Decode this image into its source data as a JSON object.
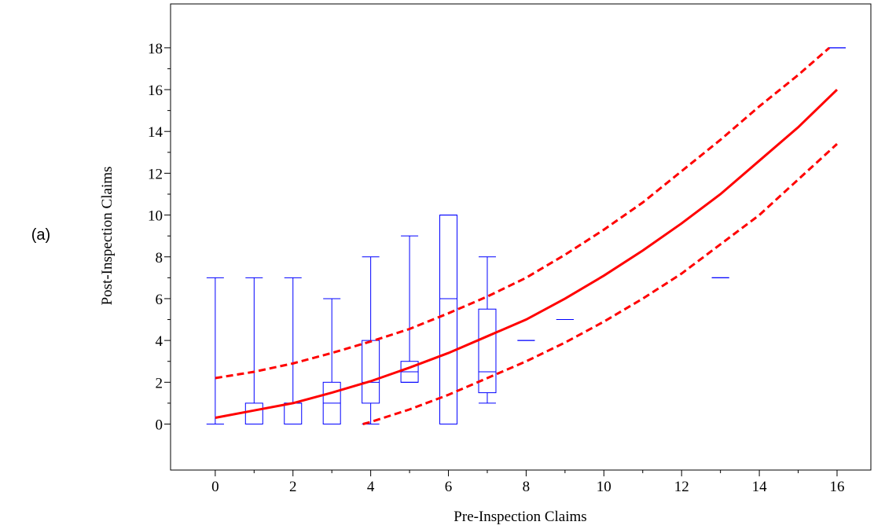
{
  "chart_data": {
    "type": "box_with_curves",
    "panel_label": "(a)",
    "x_label": "Pre-Inspection Claims",
    "y_label": "Post-Inspection Claims",
    "xlim": [
      -1.15,
      16.87
    ],
    "ylim": [
      -2.2,
      20.1
    ],
    "xticks": [
      0,
      2,
      4,
      6,
      8,
      10,
      12,
      14,
      16
    ],
    "xminorticks": [
      1,
      3,
      5,
      7,
      9,
      11,
      13,
      15
    ],
    "yticks": [
      0,
      2,
      4,
      6,
      8,
      10,
      12,
      14,
      16,
      18
    ],
    "yminorticks": [
      1,
      3,
      5,
      7,
      9,
      11,
      13,
      15,
      17
    ],
    "box_color": "#0000ff",
    "boxes": [
      {
        "x": 0,
        "min": 0,
        "q1": 0,
        "median": 0,
        "q3": 0,
        "max": 7
      },
      {
        "x": 1,
        "min": 0,
        "q1": 0,
        "median": 0,
        "q3": 1,
        "max": 7
      },
      {
        "x": 2,
        "min": 0,
        "q1": 0,
        "median": 1,
        "q3": 1,
        "max": 7
      },
      {
        "x": 3,
        "min": 0,
        "q1": 0,
        "median": 1,
        "q3": 2,
        "max": 6
      },
      {
        "x": 4,
        "min": 0,
        "q1": 1,
        "median": 2,
        "q3": 4,
        "max": 8
      },
      {
        "x": 5,
        "min": 2,
        "q1": 2,
        "median": 2.5,
        "q3": 3,
        "max": 9
      },
      {
        "x": 6,
        "min": 0,
        "q1": 0,
        "median": 6,
        "q3": 10,
        "max": 10
      },
      {
        "x": 7,
        "min": 1,
        "q1": 1.5,
        "median": 2.5,
        "q3": 5.5,
        "max": 8
      },
      {
        "x": 8,
        "min": 4,
        "q1": 4,
        "median": 4,
        "q3": 4,
        "max": 4
      },
      {
        "x": 9,
        "min": 5,
        "q1": 5,
        "median": 5,
        "q3": 5,
        "max": 5
      },
      {
        "x": 13,
        "min": 7,
        "q1": 7,
        "median": 7,
        "q3": 7,
        "max": 7
      },
      {
        "x": 16,
        "min": 18,
        "q1": 18,
        "median": 18,
        "q3": 18,
        "max": 18
      }
    ],
    "series": [
      {
        "style": "solid",
        "color": "#ff0000",
        "x": [
          0,
          1,
          2,
          3,
          4,
          5,
          6,
          7,
          8,
          9,
          10,
          11,
          12,
          13,
          14,
          15,
          16
        ],
        "values": [
          0.3,
          0.65,
          1.0,
          1.5,
          2.05,
          2.7,
          3.4,
          4.2,
          5.0,
          6.0,
          7.1,
          8.3,
          9.6,
          11.0,
          12.6,
          14.2,
          16.0
        ]
      },
      {
        "style": "dashed",
        "color": "#ff0000",
        "x": [
          0,
          1,
          2,
          3,
          4,
          5,
          6,
          7,
          8,
          9,
          10,
          11,
          12,
          13,
          14,
          15,
          15.8
        ],
        "values": [
          2.2,
          2.5,
          2.9,
          3.4,
          3.95,
          4.55,
          5.3,
          6.1,
          7.0,
          8.1,
          9.3,
          10.6,
          12.1,
          13.6,
          15.2,
          16.7,
          18.0
        ]
      },
      {
        "style": "dashed",
        "color": "#ff0000",
        "x": [
          3.8,
          4,
          5,
          6,
          7,
          8,
          9,
          10,
          11,
          12,
          13,
          14,
          15,
          16
        ],
        "values": [
          0,
          0.1,
          0.7,
          1.4,
          2.2,
          3.0,
          3.9,
          4.9,
          6.0,
          7.2,
          8.6,
          10.0,
          11.7,
          13.4
        ]
      }
    ]
  }
}
